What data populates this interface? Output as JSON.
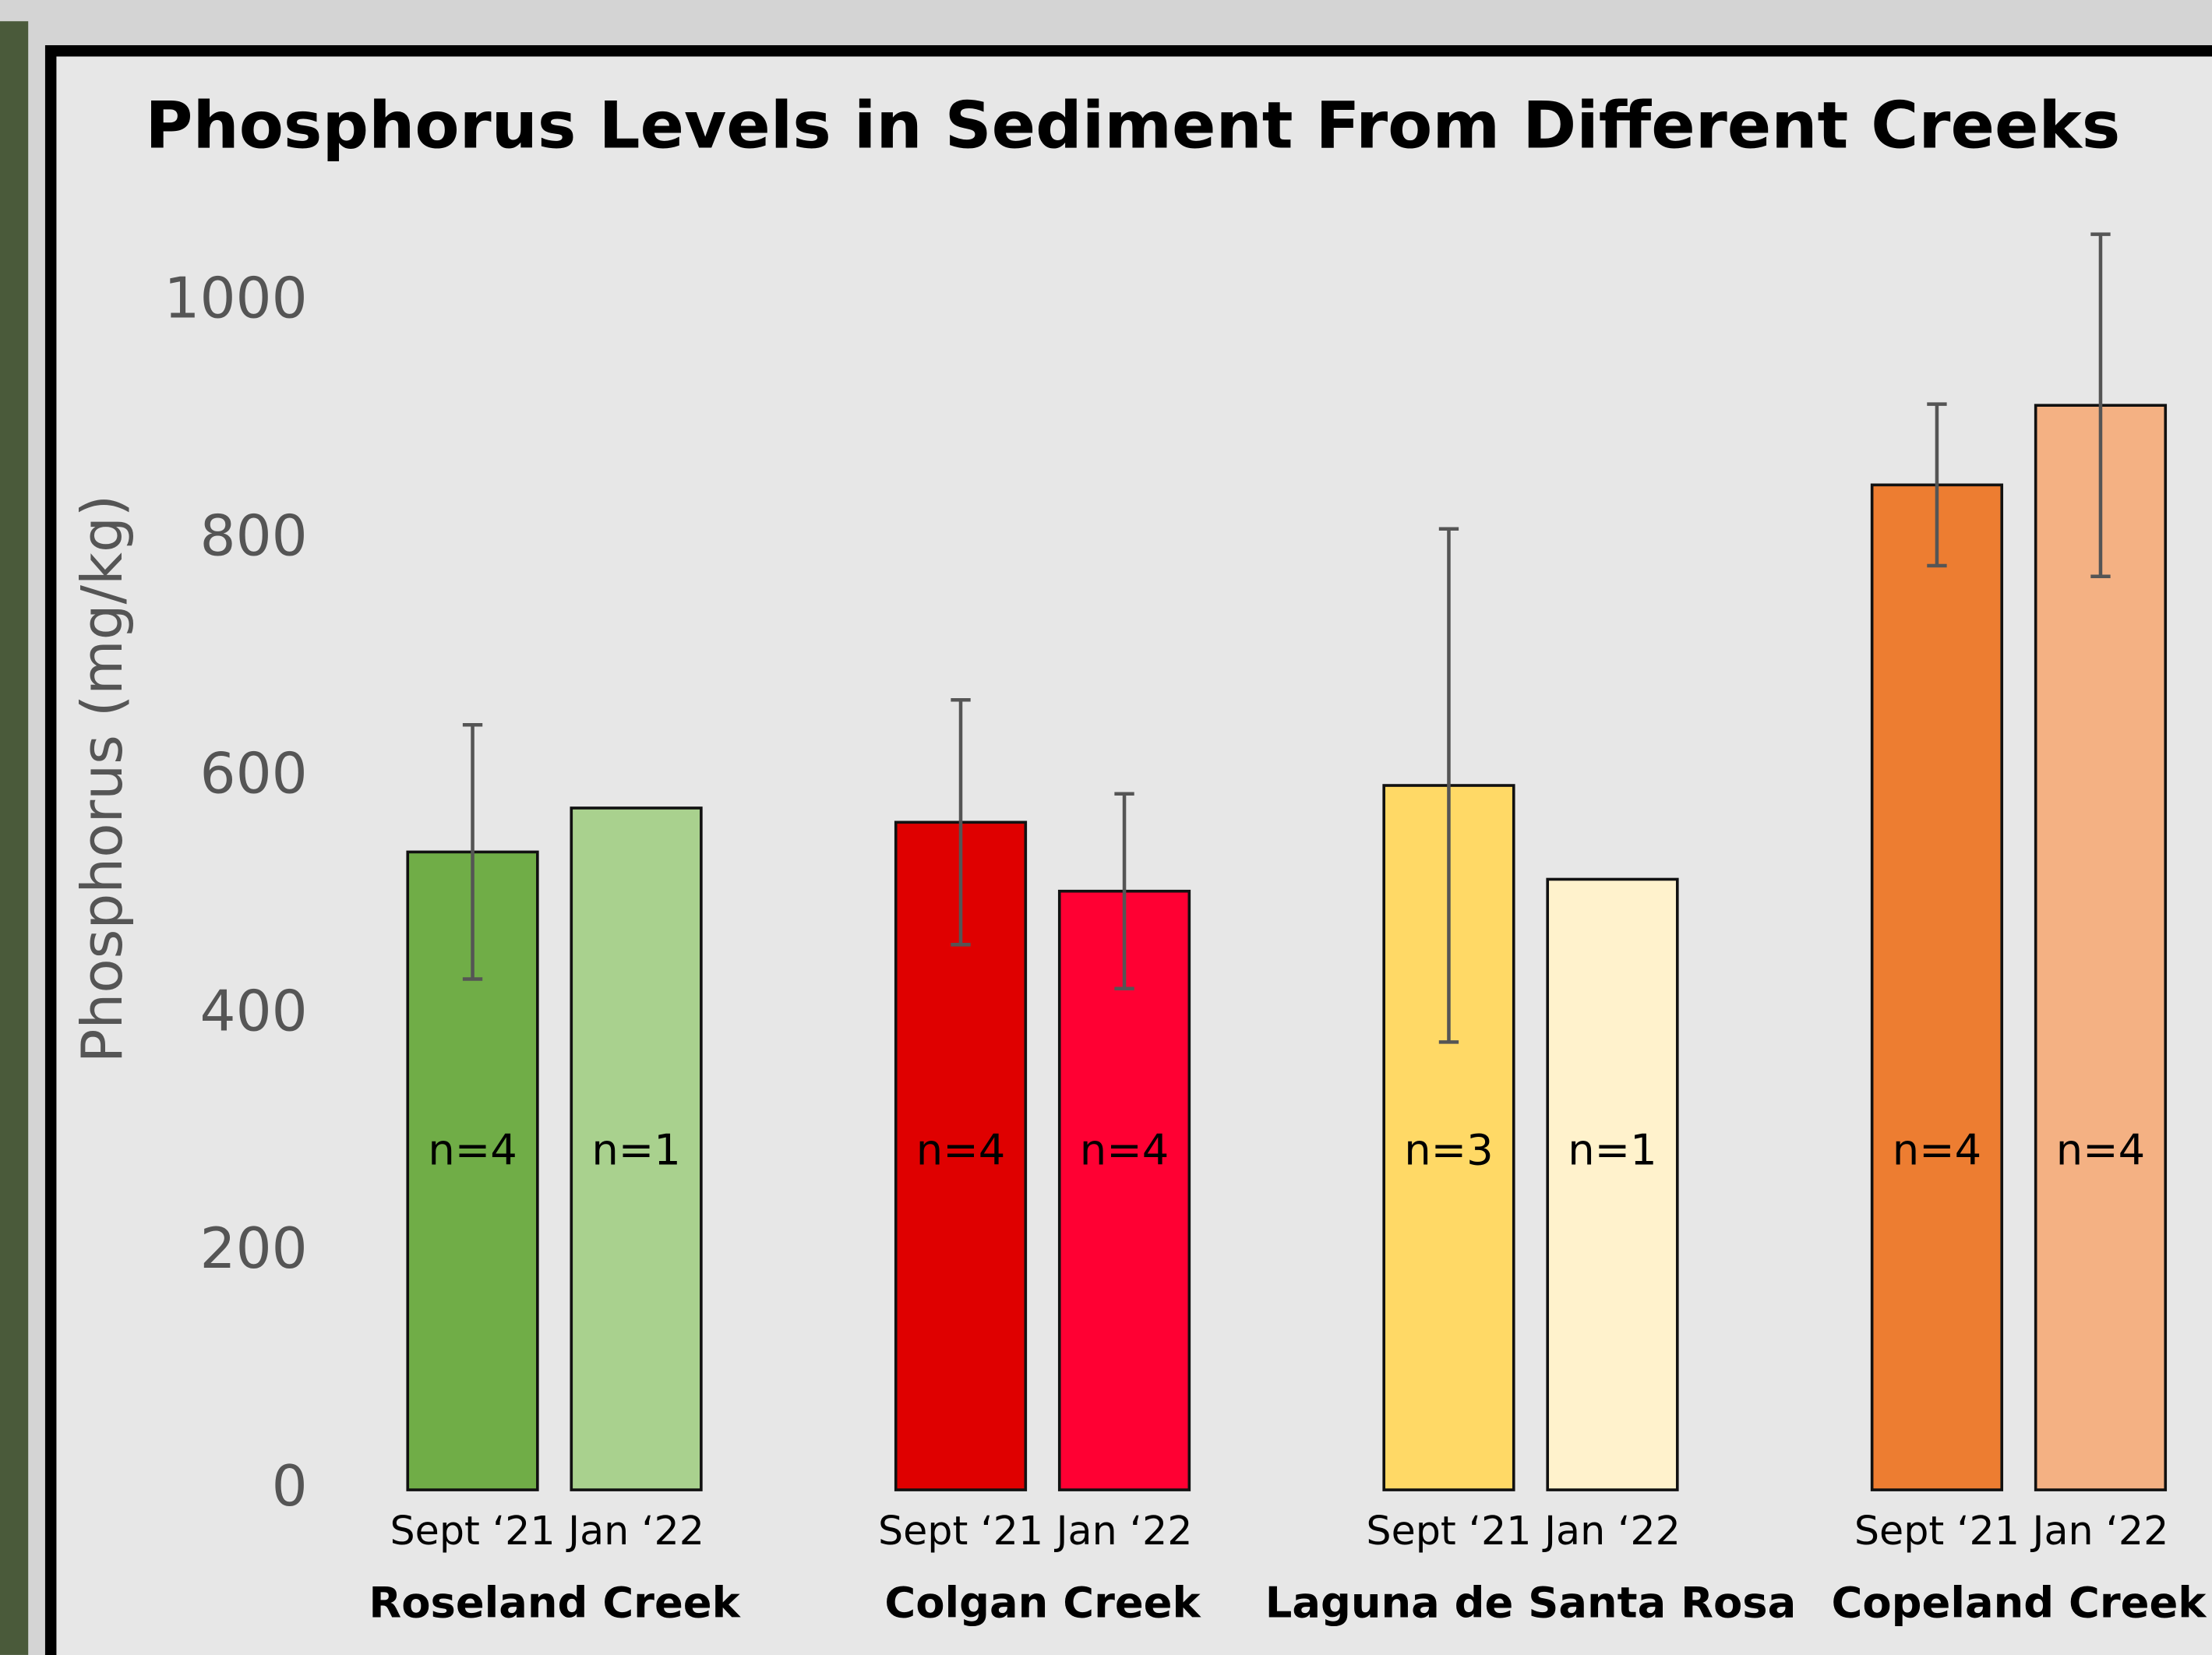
{
  "chart_data": {
    "type": "bar",
    "title": "Phosphorus Levels in Sediment From Different Creeks",
    "y_label": "Phosphorus (mg/kg)",
    "groups": [
      "Roseland Creek",
      "Colgan Creek",
      "Laguna de Santa Rosa",
      "Copeland Creek"
    ],
    "categories": [
      "Sept ‘21",
      "Jan ‘22",
      "Sept ‘21",
      "Jan ‘22",
      "Sept ‘21",
      "Jan ‘22",
      "Sept ‘21",
      "Jan ‘22"
    ],
    "values": [
      537,
      574,
      562,
      504,
      593,
      514,
      846,
      913
    ],
    "errors": [
      107,
      null,
      103,
      82,
      216,
      null,
      68,
      144
    ],
    "bar_labels": [
      "n=4",
      "n=1",
      "n=4",
      "n=4",
      "n=3",
      "n=1",
      "n=4",
      "n=4"
    ],
    "colors": [
      "#70ad47",
      "#a9d18e",
      "#df0000",
      "#ff0033",
      "#ffd966",
      "#fff2cc",
      "#ed7d31",
      "#f4b183"
    ],
    "ylim": [
      0,
      1100
    ],
    "yticks": [
      0,
      200,
      400,
      600,
      800,
      1000
    ],
    "grid": false
  }
}
